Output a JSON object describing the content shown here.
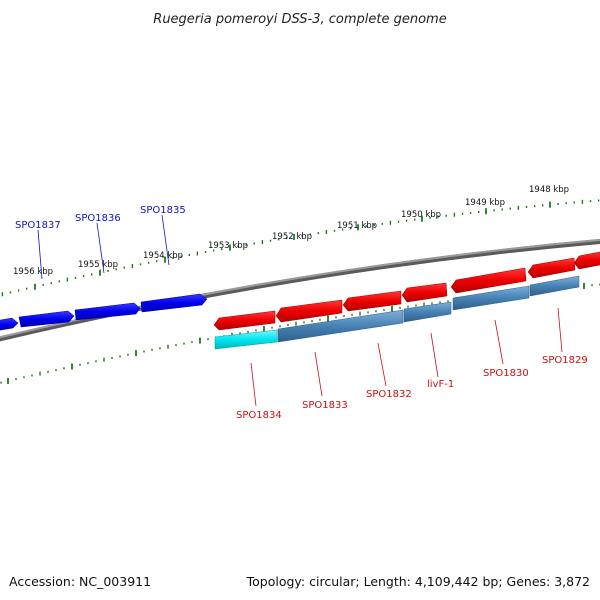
{
  "title": "Ruegeria pomeroyi DSS-3, complete genome",
  "footer": {
    "accession": "Accession: NC_003911",
    "summary": "Topology: circular; Length: 4,109,442 bp; Genes: 3,872"
  },
  "colors": {
    "backbone": "#7a7a7a",
    "tick": "#1a7a1a",
    "blue_gene": "#0000ee",
    "red_gene": "#ee0000",
    "steel": "#4682b4",
    "cyan": "#00e5ee",
    "blue_label": "#1010c8",
    "red_label": "#cc1010"
  },
  "scale": {
    "outer_labels": [
      "1956 kbp",
      "1955 kbp",
      "1954 kbp",
      "1953 kbp",
      "1952 kbp",
      "1951 kbp",
      "1950 kbp",
      "1949 kbp",
      "1948 kbp"
    ]
  },
  "genes_upper": [
    {
      "name": "SPO1837",
      "color": "blue"
    },
    {
      "name": "SPO1836",
      "color": "blue"
    },
    {
      "name": "SPO1835",
      "color": "blue"
    }
  ],
  "genes_lower": [
    {
      "name": "SPO1834",
      "color": "red"
    },
    {
      "name": "SPO1833",
      "color": "red"
    },
    {
      "name": "SPO1832",
      "color": "red"
    },
    {
      "name": "livF-1",
      "color": "red"
    },
    {
      "name": "SPO1830",
      "color": "red"
    },
    {
      "name": "SPO1829",
      "color": "red"
    }
  ]
}
